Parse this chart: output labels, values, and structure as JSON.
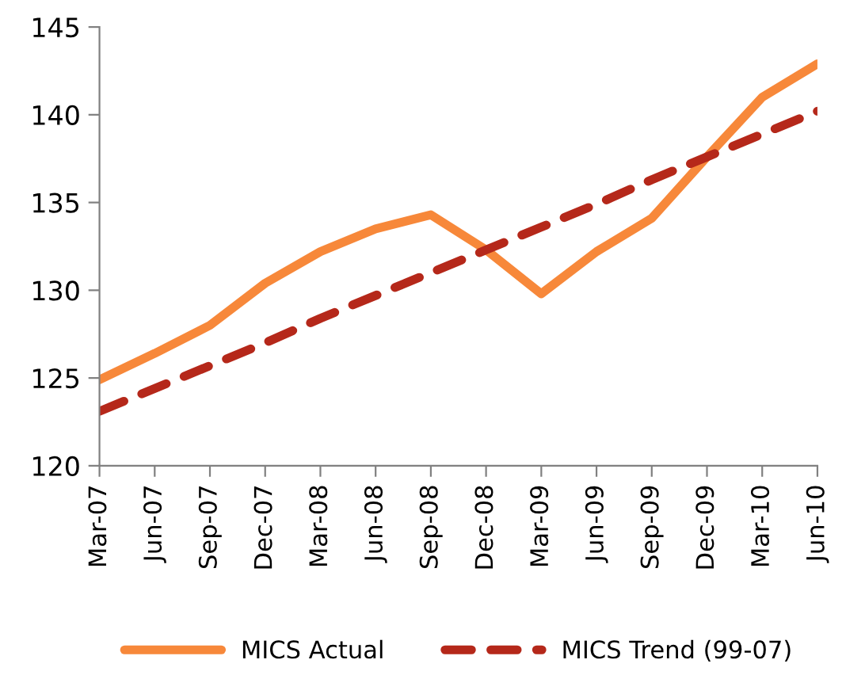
{
  "chart_data": {
    "type": "line",
    "categories": [
      "Mar-07",
      "Jun-07",
      "Sep-07",
      "Dec-07",
      "Mar-08",
      "Jun-08",
      "Sep-08",
      "Dec-08",
      "Mar-09",
      "Jun-09",
      "Sep-09",
      "Dec-09",
      "Mar-10",
      "Jun-10"
    ],
    "series": [
      {
        "name": "MICS Actual",
        "color": "#f7883a",
        "line_style": "solid",
        "values": [
          124.9,
          126.4,
          128.0,
          130.4,
          132.2,
          133.5,
          134.3,
          132.3,
          129.8,
          132.2,
          134.1,
          137.6,
          141.0,
          142.9
        ]
      },
      {
        "name": "MICS Trend (99-07)",
        "color": "#b5281a",
        "line_style": "dashed",
        "values": [
          123.1,
          124.4,
          125.7,
          127.0,
          128.4,
          129.7,
          131.0,
          132.3,
          133.6,
          134.9,
          136.3,
          137.6,
          138.9,
          140.2
        ]
      }
    ],
    "ylim": [
      120,
      145
    ],
    "yticks": [
      120,
      125,
      130,
      135,
      140,
      145
    ],
    "grid": false,
    "legend": "bottom",
    "marker": "none"
  }
}
